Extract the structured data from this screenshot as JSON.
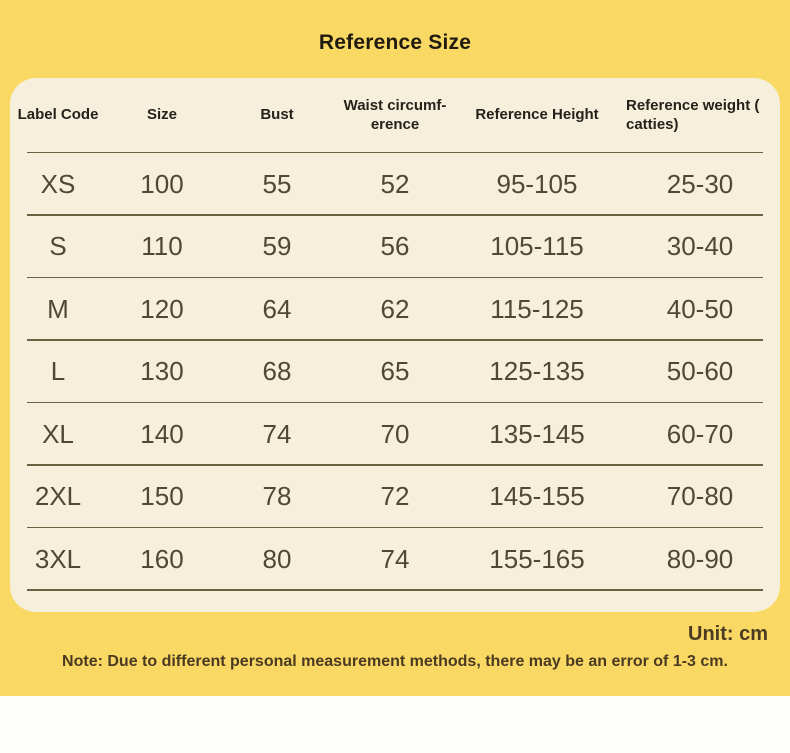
{
  "page": {
    "title": "Reference Size",
    "unit_label": "Unit: cm",
    "note": "Note: Due to different personal measurement methods, there may be an error of 1-3 cm."
  },
  "table": {
    "headers": [
      "Label Code",
      "Size",
      "Bust",
      "Waist circumf-erence",
      "Reference Height",
      "Reference weight (​catties)"
    ],
    "rows": [
      [
        "XS",
        "100",
        "55",
        "52",
        "95-105",
        "25-30"
      ],
      [
        "S",
        "110",
        "59",
        "56",
        "105-115",
        "30-40"
      ],
      [
        "M",
        "120",
        "64",
        "62",
        "115-125",
        "40-50"
      ],
      [
        "L",
        "130",
        "68",
        "65",
        "125-135",
        "50-60"
      ],
      [
        "XL",
        "140",
        "74",
        "70",
        "135-145",
        "60-70"
      ],
      [
        "2XL",
        "150",
        "78",
        "72",
        "145-155",
        "70-80"
      ],
      [
        "3XL",
        "160",
        "80",
        "74",
        "155-165",
        "80-90"
      ]
    ]
  },
  "colors": {
    "background": "#f9d964",
    "card_background": "#f5efdc",
    "separator_line": "#6b6243",
    "header_text": "#26211a",
    "data_text": "#4f4835",
    "note_text": "#4b3a21",
    "bottom_band": "#fdfdfb"
  }
}
